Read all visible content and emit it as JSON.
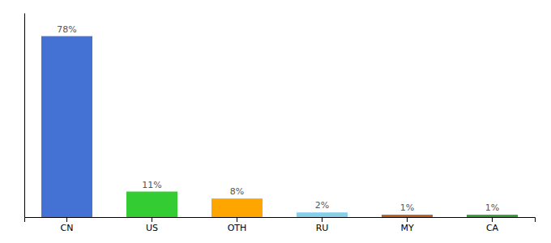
{
  "chart_data": {
    "type": "bar",
    "categories": [
      "CN",
      "US",
      "OTH",
      "RU",
      "MY",
      "CA"
    ],
    "values": [
      78,
      11,
      8,
      2,
      1,
      1
    ],
    "value_labels": [
      "78%",
      "11%",
      "8%",
      "2%",
      "1%",
      "1%"
    ],
    "data_labels": true,
    "colors": [
      "#4472d4",
      "#33cc33",
      "#ffa500",
      "#87ceeb",
      "#b85c20",
      "#339933"
    ],
    "ylim": [
      0,
      88
    ],
    "tick_labels": "x"
  }
}
